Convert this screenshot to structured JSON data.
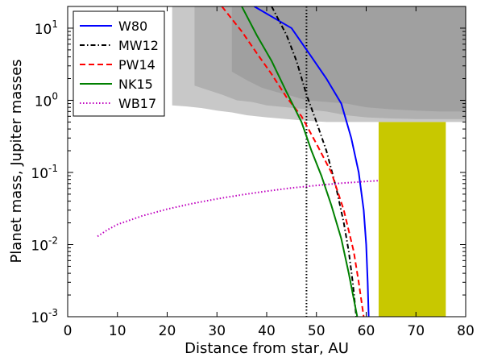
{
  "chart_data": {
    "type": "line",
    "title": "",
    "xlabel": "Distance from star, AU",
    "ylabel": "Planet mass, Jupiter masses",
    "xlim": [
      0,
      80
    ],
    "ylim": [
      0.001,
      20
    ],
    "yscale": "log",
    "legend_position": "top-left",
    "x_ticks": [
      {
        "value": 0,
        "label": "0"
      },
      {
        "value": 10,
        "label": "10"
      },
      {
        "value": 20,
        "label": "20"
      },
      {
        "value": 30,
        "label": "30"
      },
      {
        "value": 40,
        "label": "40"
      },
      {
        "value": 50,
        "label": "50"
      },
      {
        "value": 60,
        "label": "60"
      },
      {
        "value": 70,
        "label": "70"
      },
      {
        "value": 80,
        "label": "80"
      }
    ],
    "y_ticks": [
      {
        "value": 0.001,
        "base": "10",
        "exp": "-3"
      },
      {
        "value": 0.01,
        "base": "10",
        "exp": "-2"
      },
      {
        "value": 0.1,
        "base": "10",
        "exp": "-1"
      },
      {
        "value": 1,
        "base": "10",
        "exp": "0"
      },
      {
        "value": 10,
        "base": "10",
        "exp": "1"
      }
    ],
    "series": [
      {
        "name": "W80",
        "color": "#0000ff",
        "dash": "solid",
        "x": [
          37.5,
          45,
          49,
          52,
          55,
          57,
          58.5,
          59.5,
          60,
          60.3,
          60.5
        ],
        "y": [
          20,
          10,
          4,
          2,
          0.9,
          0.3,
          0.1,
          0.03,
          0.01,
          0.003,
          0.001
        ]
      },
      {
        "name": "MW12",
        "color": "#000000",
        "dash": "dashdot",
        "x": [
          41,
          44,
          46,
          48,
          50,
          52,
          54,
          55.5,
          56.5,
          57.3,
          58
        ],
        "y": [
          20,
          8,
          3.5,
          1.2,
          0.5,
          0.2,
          0.06,
          0.02,
          0.008,
          0.003,
          0.001
        ]
      },
      {
        "name": "PW14",
        "color": "#ff0000",
        "dash": "dashed",
        "x": [
          31,
          35,
          38,
          41,
          44,
          47,
          50,
          53,
          55.5,
          57.5,
          58.5,
          59.5
        ],
        "y": [
          20,
          9,
          4.5,
          2.3,
          1.1,
          0.6,
          0.25,
          0.1,
          0.03,
          0.008,
          0.003,
          0.001
        ]
      },
      {
        "name": "NK15",
        "color": "#008000",
        "dash": "solid",
        "x": [
          35,
          38,
          41,
          44,
          47,
          49,
          51,
          53,
          55,
          56.5,
          57.7,
          58.2
        ],
        "y": [
          20,
          8,
          3.5,
          1.3,
          0.5,
          0.2,
          0.09,
          0.035,
          0.012,
          0.004,
          0.0015,
          0.001
        ]
      },
      {
        "name": "WB17",
        "color": "#bf00bf",
        "dash": "dotted",
        "x": [
          6,
          8,
          10,
          15,
          20,
          25,
          30,
          35,
          40,
          45,
          50,
          55,
          60,
          62.5
        ],
        "y": [
          0.013,
          0.016,
          0.019,
          0.025,
          0.031,
          0.037,
          0.043,
          0.049,
          0.055,
          0.061,
          0.066,
          0.071,
          0.075,
          0.077
        ]
      }
    ],
    "vertical_line": {
      "x": 48,
      "color": "#000000",
      "style": "dotted"
    },
    "yellow_band": {
      "x0": 62.5,
      "x1": 76,
      "y0": 0.001,
      "y1": 0.5,
      "color": "#c8c800"
    },
    "shaded_regions": [
      {
        "color": "#c8c8c8",
        "x0": 21,
        "y_min": 20,
        "boundary": [
          [
            21,
            0.85
          ],
          [
            24,
            0.82
          ],
          [
            27,
            0.78
          ],
          [
            30,
            0.72
          ],
          [
            33,
            0.68
          ],
          [
            36,
            0.62
          ],
          [
            40,
            0.58
          ],
          [
            44,
            0.55
          ],
          [
            48,
            0.52
          ],
          [
            52,
            0.5
          ],
          [
            56,
            0.5
          ],
          [
            60,
            0.5
          ],
          [
            65,
            0.5
          ],
          [
            70,
            0.5
          ],
          [
            75,
            0.5
          ],
          [
            80,
            0.5
          ]
        ]
      },
      {
        "color": "#b0b0b0",
        "x0": 25.5,
        "y_min": 20,
        "boundary": [
          [
            25.5,
            1.6
          ],
          [
            28,
            1.4
          ],
          [
            31,
            1.2
          ],
          [
            34,
            1.0
          ],
          [
            37,
            0.95
          ],
          [
            40,
            0.85
          ],
          [
            44,
            0.8
          ],
          [
            48,
            0.75
          ],
          [
            52,
            0.7
          ],
          [
            56,
            0.62
          ],
          [
            60,
            0.58
          ],
          [
            65,
            0.56
          ],
          [
            70,
            0.55
          ],
          [
            75,
            0.55
          ],
          [
            80,
            0.55
          ]
        ]
      },
      {
        "color": "#a0a0a0",
        "x0": 33,
        "y_min": 20,
        "boundary": [
          [
            33,
            2.5
          ],
          [
            36,
            1.9
          ],
          [
            39,
            1.5
          ],
          [
            42,
            1.3
          ],
          [
            45,
            1.15
          ],
          [
            48,
            1.0
          ],
          [
            52,
            0.95
          ],
          [
            56,
            0.9
          ],
          [
            60,
            0.8
          ],
          [
            65,
            0.75
          ],
          [
            70,
            0.72
          ],
          [
            75,
            0.7
          ],
          [
            80,
            0.7
          ]
        ]
      }
    ]
  }
}
